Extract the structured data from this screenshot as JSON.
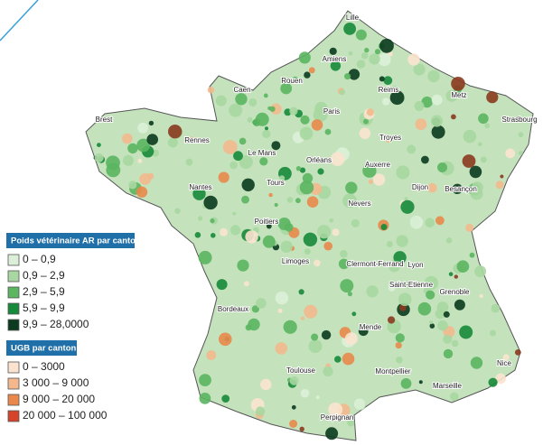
{
  "map": {
    "cities": [
      "Lille",
      "Amiens",
      "Rouen",
      "Caen",
      "Reims",
      "Metz",
      "Strasbourg",
      "Brest",
      "Paris",
      "Troyes",
      "Rennes",
      "Le Mans",
      "Orléans",
      "Auxerre",
      "Nantes",
      "Tours",
      "Dijon",
      "Besançon",
      "Nevers",
      "Poitiers",
      "Limoges",
      "Clermont-Ferrand",
      "Lyon",
      "Saint-Etienne",
      "Grenoble",
      "Bordeaux",
      "Mende",
      "Nice",
      "Toulouse",
      "Montpellier",
      "Marseille",
      "Perpignan"
    ]
  },
  "legend": {
    "vet": {
      "title": "Poids vétérinaire AR par canton",
      "items": [
        {
          "label": "0 – 0,9",
          "color": "#dcefd8"
        },
        {
          "label": "0,9 – 2,9",
          "color": "#a9d7a1"
        },
        {
          "label": "2,9 – 5,9",
          "color": "#5bb561"
        },
        {
          "label": "5,9 – 9,9",
          "color": "#17893a"
        },
        {
          "label": "9,9 – 28,0000",
          "color": "#0b3a1e"
        }
      ]
    },
    "ugb": {
      "title": "UGB par canton",
      "items": [
        {
          "label": "0 – 3000",
          "color": "#fbe3cf"
        },
        {
          "label": "3 000 – 9 000",
          "color": "#f3b88c"
        },
        {
          "label": "9 000 – 20 000",
          "color": "#e9884a"
        },
        {
          "label": "20 000 – 100 000",
          "color": "#d4432a"
        }
      ]
    }
  }
}
